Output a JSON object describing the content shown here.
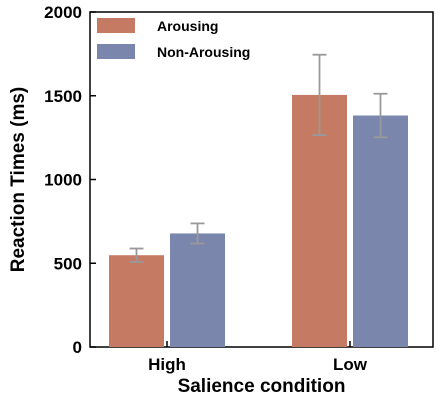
{
  "chart_data": {
    "type": "bar",
    "categories": [
      "High",
      "Low"
    ],
    "series": [
      {
        "name": "Arousing",
        "values": [
          548,
          1505
        ],
        "error": [
          40,
          240
        ],
        "color": "#c57a63"
      },
      {
        "name": "Non-Arousing",
        "values": [
          678,
          1382
        ],
        "error": [
          60,
          130
        ],
        "color": "#7a86ab"
      }
    ],
    "xlabel": "Salience condition",
    "ylabel": "Reaction Times (ms)",
    "ylim": [
      0,
      2000
    ],
    "yticks": [
      "0",
      "500",
      "1000",
      "1500",
      "2000"
    ],
    "legend": "top-left",
    "grid": false,
    "errorbar_color": "#999999"
  }
}
